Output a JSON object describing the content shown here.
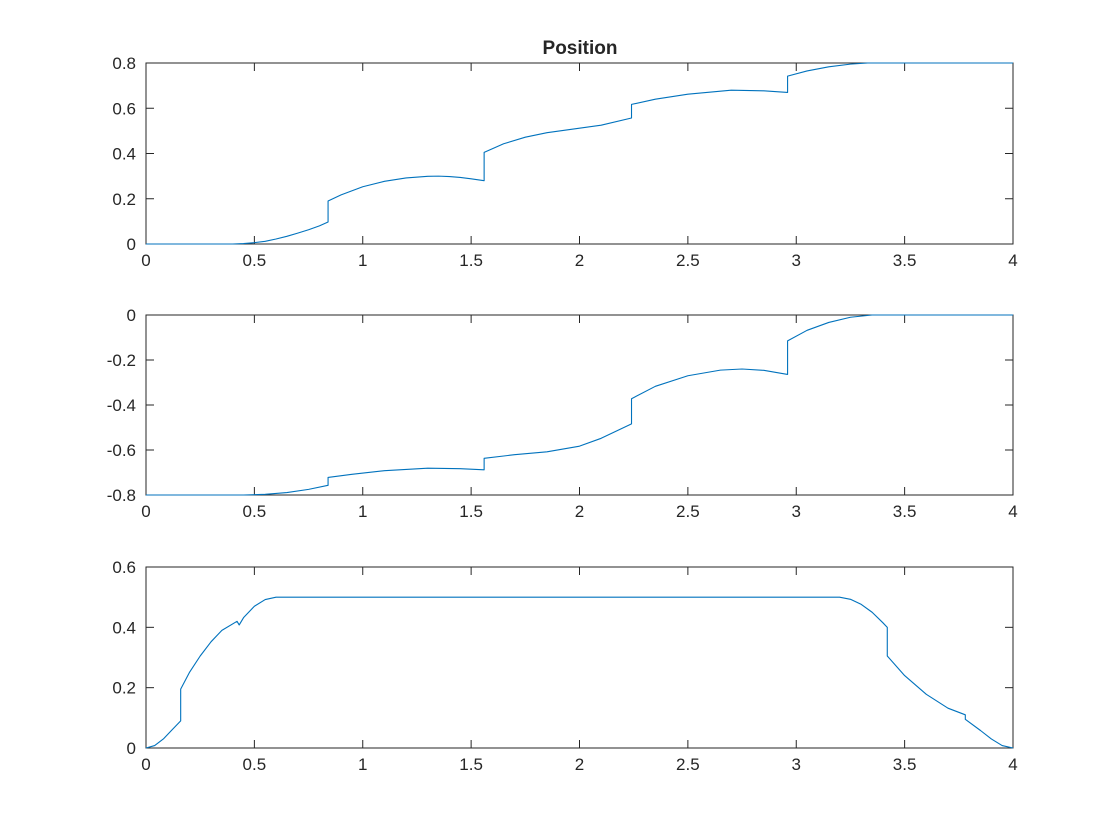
{
  "figure": {
    "background": "#ffffff",
    "axis_color": "#262626",
    "line_color": "#0072BD"
  },
  "chart_data": [
    {
      "type": "line",
      "title": "Position",
      "xlabel": "",
      "ylabel": "",
      "xlim": [
        0,
        4
      ],
      "ylim": [
        0,
        0.8
      ],
      "grid": false,
      "xticks": [
        0,
        0.5,
        1,
        1.5,
        2,
        2.5,
        3,
        3.5,
        4
      ],
      "xtick_labels": [
        "0",
        "0.5",
        "1",
        "1.5",
        "2",
        "2.5",
        "3",
        "3.5",
        "4"
      ],
      "yticks": [
        0,
        0.2,
        0.4,
        0.6,
        0.8
      ],
      "ytick_labels": [
        "0",
        "0.2",
        "0.4",
        "0.6",
        "0.8"
      ],
      "series": [
        {
          "color": "#0072BD",
          "x": [
            0,
            0.4,
            0.45,
            0.5,
            0.55,
            0.6,
            0.65,
            0.7,
            0.75,
            0.8,
            0.84,
            0.84,
            0.9,
            1.0,
            1.1,
            1.2,
            1.3,
            1.35,
            1.4,
            1.45,
            1.5,
            1.56,
            1.56,
            1.65,
            1.75,
            1.85,
            2.0,
            2.1,
            2.24,
            2.24,
            2.35,
            2.5,
            2.7,
            2.85,
            2.96,
            2.96,
            3.05,
            3.15,
            3.25,
            3.33,
            4.0
          ],
          "y": [
            0,
            0,
            0.002,
            0.006,
            0.012,
            0.022,
            0.034,
            0.048,
            0.063,
            0.08,
            0.097,
            0.19,
            0.217,
            0.253,
            0.277,
            0.292,
            0.299,
            0.3,
            0.298,
            0.294,
            0.288,
            0.28,
            0.405,
            0.443,
            0.472,
            0.492,
            0.512,
            0.525,
            0.557,
            0.617,
            0.64,
            0.662,
            0.68,
            0.677,
            0.67,
            0.742,
            0.765,
            0.783,
            0.795,
            0.8,
            0.8
          ]
        }
      ]
    },
    {
      "type": "line",
      "title": "",
      "xlabel": "",
      "ylabel": "",
      "xlim": [
        0,
        4
      ],
      "ylim": [
        -0.8,
        0
      ],
      "grid": false,
      "xticks": [
        0,
        0.5,
        1,
        1.5,
        2,
        2.5,
        3,
        3.5,
        4
      ],
      "xtick_labels": [
        "0",
        "0.5",
        "1",
        "1.5",
        "2",
        "2.5",
        "3",
        "3.5",
        "4"
      ],
      "yticks": [
        -0.8,
        -0.6,
        -0.4,
        -0.2,
        0
      ],
      "ytick_labels": [
        "-0.8",
        "-0.6",
        "-0.4",
        "-0.2",
        "0"
      ],
      "series": [
        {
          "color": "#0072BD",
          "x": [
            0,
            0.45,
            0.55,
            0.65,
            0.75,
            0.84,
            0.84,
            0.95,
            1.1,
            1.3,
            1.45,
            1.56,
            1.56,
            1.7,
            1.85,
            2.0,
            2.1,
            2.24,
            2.24,
            2.35,
            2.5,
            2.65,
            2.75,
            2.85,
            2.96,
            2.96,
            3.05,
            3.15,
            3.25,
            3.35,
            4.0
          ],
          "y": [
            -0.8,
            -0.8,
            -0.797,
            -0.789,
            -0.775,
            -0.757,
            -0.722,
            -0.708,
            -0.692,
            -0.681,
            -0.683,
            -0.688,
            -0.637,
            -0.621,
            -0.608,
            -0.583,
            -0.548,
            -0.484,
            -0.372,
            -0.317,
            -0.27,
            -0.245,
            -0.24,
            -0.246,
            -0.264,
            -0.115,
            -0.068,
            -0.033,
            -0.01,
            0,
            0
          ]
        }
      ]
    },
    {
      "type": "line",
      "title": "",
      "xlabel": "",
      "ylabel": "",
      "xlim": [
        0,
        4
      ],
      "ylim": [
        0,
        0.6
      ],
      "grid": false,
      "xticks": [
        0,
        0.5,
        1,
        1.5,
        2,
        2.5,
        3,
        3.5,
        4
      ],
      "xtick_labels": [
        "0",
        "0.5",
        "1",
        "1.5",
        "2",
        "2.5",
        "3",
        "3.5",
        "4"
      ],
      "yticks": [
        0,
        0.2,
        0.4,
        0.6
      ],
      "ytick_labels": [
        "0",
        "0.2",
        "0.4",
        "0.6"
      ],
      "series": [
        {
          "color": "#0072BD",
          "x": [
            0,
            0.04,
            0.08,
            0.12,
            0.16,
            0.16,
            0.2,
            0.25,
            0.3,
            0.35,
            0.42,
            0.43,
            0.45,
            0.5,
            0.55,
            0.6,
            3.2,
            3.25,
            3.3,
            3.35,
            3.4,
            3.42,
            3.42,
            3.5,
            3.6,
            3.7,
            3.78,
            3.78,
            3.85,
            3.9,
            3.95,
            4.0
          ],
          "y": [
            0,
            0.008,
            0.03,
            0.06,
            0.09,
            0.195,
            0.25,
            0.305,
            0.352,
            0.39,
            0.42,
            0.408,
            0.432,
            0.47,
            0.492,
            0.5,
            0.5,
            0.493,
            0.476,
            0.45,
            0.415,
            0.4,
            0.305,
            0.24,
            0.178,
            0.132,
            0.11,
            0.095,
            0.058,
            0.03,
            0.008,
            0
          ]
        }
      ]
    }
  ]
}
